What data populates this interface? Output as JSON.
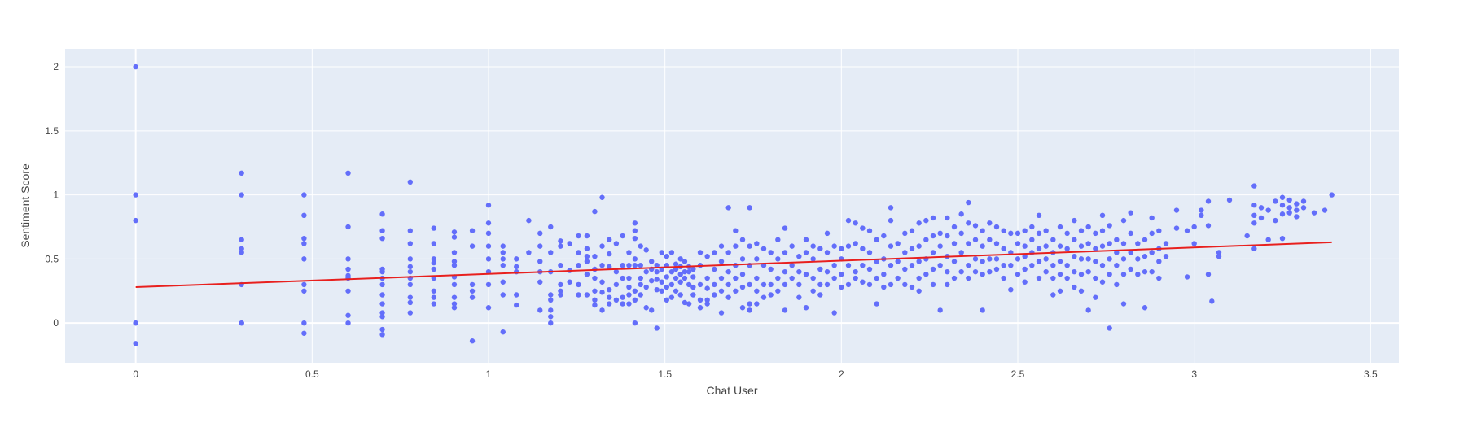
{
  "chart_data": {
    "type": "scatter",
    "xlabel": "Chat User",
    "ylabel": "Sentiment Score",
    "xlim": [
      -0.2,
      3.58
    ],
    "ylim": [
      -0.31,
      2.14
    ],
    "x_ticks": [
      0,
      0.5,
      1,
      1.5,
      2,
      2.5,
      3,
      3.5
    ],
    "x_tick_labels": [
      "0",
      "0.5",
      "1",
      "1.5",
      "2",
      "2.5",
      "3",
      "3.5"
    ],
    "y_ticks": [
      0,
      0.5,
      1,
      1.5,
      2
    ],
    "y_tick_labels": [
      "0",
      "0.5",
      "1",
      "1.5",
      "2"
    ],
    "grid": true,
    "legend": "none",
    "colors": {
      "points": "#636efa",
      "trendline": "#e8201e",
      "plot_bg": "#e5ecf6",
      "grid": "#ffffff"
    },
    "trendline": {
      "x": [
        0,
        3.39
      ],
      "y": [
        0.28,
        0.63
      ]
    },
    "point_clusters": [
      {
        "x": 0,
        "y": [
          2.0,
          1.0,
          0.8,
          0.0,
          0.0,
          -0.16
        ]
      },
      {
        "x": 0.3,
        "y": [
          1.17,
          1.0,
          0.65,
          0.58,
          0.55,
          0.3,
          0.0,
          0.0
        ]
      },
      {
        "x": 0.477,
        "y": [
          1.0,
          0.84,
          0.66,
          0.62,
          0.5,
          0.3,
          0.25,
          0.0,
          -0.08
        ]
      },
      {
        "x": 0.602,
        "y": [
          1.17,
          0.75,
          0.5,
          0.42,
          0.37,
          0.35,
          0.25,
          0.06,
          0.0
        ]
      },
      {
        "x": 0.699,
        "y": [
          0.85,
          0.72,
          0.66,
          0.42,
          0.4,
          0.35,
          0.3,
          0.22,
          0.15,
          0.08,
          0.05,
          -0.05,
          -0.09
        ]
      },
      {
        "x": 0.778,
        "y": [
          1.1,
          0.72,
          0.62,
          0.5,
          0.44,
          0.4,
          0.35,
          0.3,
          0.2,
          0.16,
          0.08
        ]
      },
      {
        "x": 0.845,
        "y": [
          0.74,
          0.62,
          0.5,
          0.47,
          0.42,
          0.35,
          0.25,
          0.2,
          0.15
        ]
      },
      {
        "x": 0.903,
        "y": [
          0.71,
          0.67,
          0.55,
          0.48,
          0.45,
          0.36,
          0.3,
          0.2,
          0.15,
          0.12
        ]
      },
      {
        "x": 0.954,
        "y": [
          0.72,
          0.6,
          0.3,
          0.25,
          0.2,
          -0.14
        ]
      },
      {
        "x": 1.0,
        "y": [
          0.92,
          0.78,
          0.7,
          0.6,
          0.5,
          0.4,
          0.3,
          0.12
        ]
      },
      {
        "x": 1.041,
        "y": [
          0.6,
          0.55,
          0.5,
          0.45,
          0.32,
          0.22,
          -0.07
        ]
      },
      {
        "x": 1.079,
        "y": [
          0.5,
          0.44,
          0.4,
          0.22,
          0.14
        ]
      },
      {
        "x": 1.114,
        "y": [
          0.8,
          0.55
        ]
      },
      {
        "x": 1.146,
        "y": [
          0.7,
          0.6,
          0.48,
          0.4,
          0.32,
          0.1
        ]
      },
      {
        "x": 1.176,
        "y": [
          0.75,
          0.55,
          0.4,
          0.22,
          0.18,
          0.1,
          0.05,
          0.0
        ]
      },
      {
        "x": 1.204,
        "y": [
          0.64,
          0.6,
          0.45,
          0.3,
          0.25,
          0.22
        ]
      },
      {
        "x": 1.23,
        "y": [
          0.62,
          0.41,
          0.32
        ]
      },
      {
        "x": 1.255,
        "y": [
          0.68,
          0.55,
          0.45,
          0.3,
          0.22
        ]
      },
      {
        "x": 1.279,
        "y": [
          0.68,
          0.58,
          0.52,
          0.48,
          0.38,
          0.22
        ]
      },
      {
        "x": 1.301,
        "y": [
          0.87,
          0.52,
          0.42,
          0.35,
          0.25,
          0.18,
          0.14
        ]
      },
      {
        "x": 1.322,
        "y": [
          0.98,
          0.6,
          0.45,
          0.32,
          0.24,
          0.1
        ]
      },
      {
        "x": 1.342,
        "y": [
          0.65,
          0.54,
          0.44,
          0.26,
          0.2,
          0.15
        ]
      },
      {
        "x": 1.362,
        "y": [
          0.62,
          0.4,
          0.3,
          0.18
        ]
      },
      {
        "x": 1.38,
        "y": [
          0.68,
          0.45,
          0.35,
          0.2,
          0.15
        ]
      },
      {
        "x": 1.398,
        "y": [
          0.55,
          0.45,
          0.35,
          0.28,
          0.22,
          0.15
        ]
      },
      {
        "x": 1.415,
        "y": [
          0.78,
          0.72,
          0.66,
          0.5,
          0.45,
          0.25,
          0.18,
          0.0
        ]
      },
      {
        "x": 1.431,
        "y": [
          0.6,
          0.45,
          0.35,
          0.3,
          0.22
        ]
      },
      {
        "x": 1.447,
        "y": [
          0.57,
          0.4,
          0.28,
          0.12
        ]
      },
      {
        "x": 1.462,
        "y": [
          0.48,
          0.42,
          0.33,
          0.1
        ]
      },
      {
        "x": 1.477,
        "y": [
          0.45,
          0.4,
          0.34,
          0.26,
          -0.04
        ]
      },
      {
        "x": 1.491,
        "y": [
          0.55,
          0.42,
          0.32,
          0.25
        ]
      },
      {
        "x": 1.505,
        "y": [
          0.52,
          0.45,
          0.36,
          0.28,
          0.18
        ]
      },
      {
        "x": 1.519,
        "y": [
          0.55,
          0.4,
          0.3,
          0.2
        ]
      },
      {
        "x": 1.531,
        "y": [
          0.46,
          0.42,
          0.35,
          0.25
        ]
      },
      {
        "x": 1.544,
        "y": [
          0.5,
          0.44,
          0.38,
          0.32,
          0.22
        ]
      },
      {
        "x": 1.556,
        "y": [
          0.48,
          0.4,
          0.35,
          0.16
        ]
      },
      {
        "x": 1.568,
        "y": [
          0.44,
          0.4,
          0.3,
          0.15
        ]
      },
      {
        "x": 1.58,
        "y": [
          0.42,
          0.36,
          0.28,
          0.22
        ]
      },
      {
        "x": 1.6,
        "y": [
          0.55,
          0.45,
          0.3,
          0.18,
          0.12
        ]
      },
      {
        "x": 1.62,
        "y": [
          0.52,
          0.35,
          0.27,
          0.18,
          0.15
        ]
      },
      {
        "x": 1.64,
        "y": [
          0.55,
          0.42,
          0.3,
          0.22
        ]
      },
      {
        "x": 1.66,
        "y": [
          0.6,
          0.48,
          0.35,
          0.25,
          0.08
        ]
      },
      {
        "x": 1.68,
        "y": [
          0.9,
          0.55,
          0.4,
          0.3,
          0.2
        ]
      },
      {
        "x": 1.7,
        "y": [
          0.72,
          0.6,
          0.45,
          0.35,
          0.25
        ]
      },
      {
        "x": 1.72,
        "y": [
          0.65,
          0.5,
          0.38,
          0.28,
          0.12
        ]
      },
      {
        "x": 1.74,
        "y": [
          0.9,
          0.6,
          0.45,
          0.3,
          0.15,
          0.1
        ]
      },
      {
        "x": 1.76,
        "y": [
          0.62,
          0.5,
          0.35,
          0.25,
          0.15
        ]
      },
      {
        "x": 1.78,
        "y": [
          0.58,
          0.45,
          0.3,
          0.2
        ]
      },
      {
        "x": 1.8,
        "y": [
          0.55,
          0.42,
          0.3,
          0.22
        ]
      },
      {
        "x": 1.82,
        "y": [
          0.65,
          0.5,
          0.35,
          0.25
        ]
      },
      {
        "x": 1.84,
        "y": [
          0.74,
          0.55,
          0.4,
          0.3,
          0.1
        ]
      },
      {
        "x": 1.86,
        "y": [
          0.6,
          0.45,
          0.35
        ]
      },
      {
        "x": 1.88,
        "y": [
          0.52,
          0.4,
          0.3,
          0.2
        ]
      },
      {
        "x": 1.9,
        "y": [
          0.65,
          0.55,
          0.38,
          0.12
        ]
      },
      {
        "x": 1.92,
        "y": [
          0.6,
          0.5,
          0.35,
          0.25
        ]
      },
      {
        "x": 1.94,
        "y": [
          0.58,
          0.42,
          0.3,
          0.22
        ]
      },
      {
        "x": 1.96,
        "y": [
          0.7,
          0.55,
          0.4,
          0.3
        ]
      },
      {
        "x": 1.98,
        "y": [
          0.6,
          0.45,
          0.35,
          0.08
        ]
      },
      {
        "x": 2.0,
        "y": [
          0.58,
          0.5,
          0.38,
          0.28
        ]
      },
      {
        "x": 2.02,
        "y": [
          0.8,
          0.6,
          0.45,
          0.3
        ]
      },
      {
        "x": 2.04,
        "y": [
          0.78,
          0.62,
          0.4,
          0.35
        ]
      },
      {
        "x": 2.06,
        "y": [
          0.74,
          0.58,
          0.45,
          0.32
        ]
      },
      {
        "x": 2.08,
        "y": [
          0.72,
          0.55,
          0.42,
          0.3
        ]
      },
      {
        "x": 2.1,
        "y": [
          0.65,
          0.48,
          0.35,
          0.15
        ]
      },
      {
        "x": 2.12,
        "y": [
          0.68,
          0.5,
          0.38,
          0.28
        ]
      },
      {
        "x": 2.14,
        "y": [
          0.9,
          0.8,
          0.6,
          0.45,
          0.3
        ]
      },
      {
        "x": 2.16,
        "y": [
          0.62,
          0.48,
          0.35
        ]
      },
      {
        "x": 2.18,
        "y": [
          0.7,
          0.55,
          0.42,
          0.3
        ]
      },
      {
        "x": 2.2,
        "y": [
          0.72,
          0.58,
          0.45,
          0.28
        ]
      },
      {
        "x": 2.22,
        "y": [
          0.78,
          0.6,
          0.48,
          0.35,
          0.25
        ]
      },
      {
        "x": 2.24,
        "y": [
          0.8,
          0.65,
          0.5,
          0.38
        ]
      },
      {
        "x": 2.26,
        "y": [
          0.82,
          0.68,
          0.55,
          0.42,
          0.3
        ]
      },
      {
        "x": 2.28,
        "y": [
          0.7,
          0.6,
          0.45,
          0.1
        ]
      },
      {
        "x": 2.3,
        "y": [
          0.82,
          0.68,
          0.52,
          0.4,
          0.3
        ]
      },
      {
        "x": 2.32,
        "y": [
          0.75,
          0.62,
          0.48,
          0.35
        ]
      },
      {
        "x": 2.34,
        "y": [
          0.85,
          0.7,
          0.55,
          0.4
        ]
      },
      {
        "x": 2.36,
        "y": [
          0.94,
          0.78,
          0.62,
          0.45,
          0.35
        ]
      },
      {
        "x": 2.38,
        "y": [
          0.76,
          0.65,
          0.5,
          0.4
        ]
      },
      {
        "x": 2.4,
        "y": [
          0.72,
          0.6,
          0.48,
          0.38,
          0.1
        ]
      },
      {
        "x": 2.42,
        "y": [
          0.78,
          0.65,
          0.5,
          0.4
        ]
      },
      {
        "x": 2.44,
        "y": [
          0.75,
          0.62,
          0.5,
          0.42
        ]
      },
      {
        "x": 2.46,
        "y": [
          0.72,
          0.58,
          0.45,
          0.35
        ]
      },
      {
        "x": 2.48,
        "y": [
          0.7,
          0.55,
          0.45,
          0.26
        ]
      },
      {
        "x": 2.5,
        "y": [
          0.7,
          0.62,
          0.5,
          0.38
        ]
      },
      {
        "x": 2.52,
        "y": [
          0.72,
          0.6,
          0.52,
          0.42,
          0.32
        ]
      },
      {
        "x": 2.54,
        "y": [
          0.75,
          0.65,
          0.55,
          0.45
        ]
      },
      {
        "x": 2.56,
        "y": [
          0.84,
          0.7,
          0.58,
          0.48,
          0.35
        ]
      },
      {
        "x": 2.58,
        "y": [
          0.72,
          0.6,
          0.5,
          0.4
        ]
      },
      {
        "x": 2.6,
        "y": [
          0.65,
          0.55,
          0.45,
          0.35,
          0.22
        ]
      },
      {
        "x": 2.62,
        "y": [
          0.75,
          0.6,
          0.48,
          0.38,
          0.25
        ]
      },
      {
        "x": 2.64,
        "y": [
          0.7,
          0.58,
          0.45,
          0.35
        ]
      },
      {
        "x": 2.66,
        "y": [
          0.8,
          0.65,
          0.52,
          0.4,
          0.28
        ]
      },
      {
        "x": 2.68,
        "y": [
          0.72,
          0.6,
          0.5,
          0.38,
          0.25
        ]
      },
      {
        "x": 2.7,
        "y": [
          0.75,
          0.62,
          0.5,
          0.4,
          0.1
        ]
      },
      {
        "x": 2.72,
        "y": [
          0.7,
          0.58,
          0.48,
          0.35,
          0.2
        ]
      },
      {
        "x": 2.74,
        "y": [
          0.84,
          0.72,
          0.6,
          0.45,
          0.32
        ]
      },
      {
        "x": 2.76,
        "y": [
          0.76,
          0.62,
          0.5,
          0.38,
          -0.04
        ]
      },
      {
        "x": 2.78,
        "y": [
          0.65,
          0.55,
          0.45,
          0.3
        ]
      },
      {
        "x": 2.8,
        "y": [
          0.8,
          0.62,
          0.5,
          0.38,
          0.15
        ]
      },
      {
        "x": 2.82,
        "y": [
          0.86,
          0.7,
          0.55,
          0.42
        ]
      },
      {
        "x": 2.84,
        "y": [
          0.62,
          0.5,
          0.38
        ]
      },
      {
        "x": 2.86,
        "y": [
          0.65,
          0.52,
          0.4,
          0.12
        ]
      },
      {
        "x": 2.88,
        "y": [
          0.82,
          0.7,
          0.55,
          0.4
        ]
      },
      {
        "x": 2.9,
        "y": [
          0.72,
          0.58,
          0.48,
          0.35
        ]
      },
      {
        "x": 2.92,
        "y": [
          0.62,
          0.52
        ]
      },
      {
        "x": 2.95,
        "y": [
          0.88,
          0.74
        ]
      },
      {
        "x": 2.98,
        "y": [
          0.72,
          0.36
        ]
      },
      {
        "x": 3.0,
        "y": [
          0.75,
          0.62
        ]
      },
      {
        "x": 3.02,
        "y": [
          0.88,
          0.84
        ]
      },
      {
        "x": 3.04,
        "y": [
          0.95,
          0.76,
          0.38
        ]
      },
      {
        "x": 3.05,
        "y": [
          0.17
        ]
      },
      {
        "x": 3.07,
        "y": [
          0.55,
          0.52
        ]
      },
      {
        "x": 3.1,
        "y": [
          0.96
        ]
      },
      {
        "x": 3.15,
        "y": [
          0.68
        ]
      },
      {
        "x": 3.17,
        "y": [
          1.07,
          0.92,
          0.84,
          0.78,
          0.58
        ]
      },
      {
        "x": 3.19,
        "y": [
          0.9,
          0.82
        ]
      },
      {
        "x": 3.21,
        "y": [
          0.88,
          0.65
        ]
      },
      {
        "x": 3.23,
        "y": [
          0.95,
          0.8
        ]
      },
      {
        "x": 3.25,
        "y": [
          0.98,
          0.92,
          0.85,
          0.66
        ]
      },
      {
        "x": 3.27,
        "y": [
          0.96,
          0.9,
          0.86
        ]
      },
      {
        "x": 3.29,
        "y": [
          0.93,
          0.88,
          0.83
        ]
      },
      {
        "x": 3.31,
        "y": [
          0.95,
          0.9
        ]
      },
      {
        "x": 3.34,
        "y": [
          0.86
        ]
      },
      {
        "x": 3.37,
        "y": [
          0.88
        ]
      },
      {
        "x": 3.39,
        "y": [
          1.0
        ]
      }
    ]
  }
}
